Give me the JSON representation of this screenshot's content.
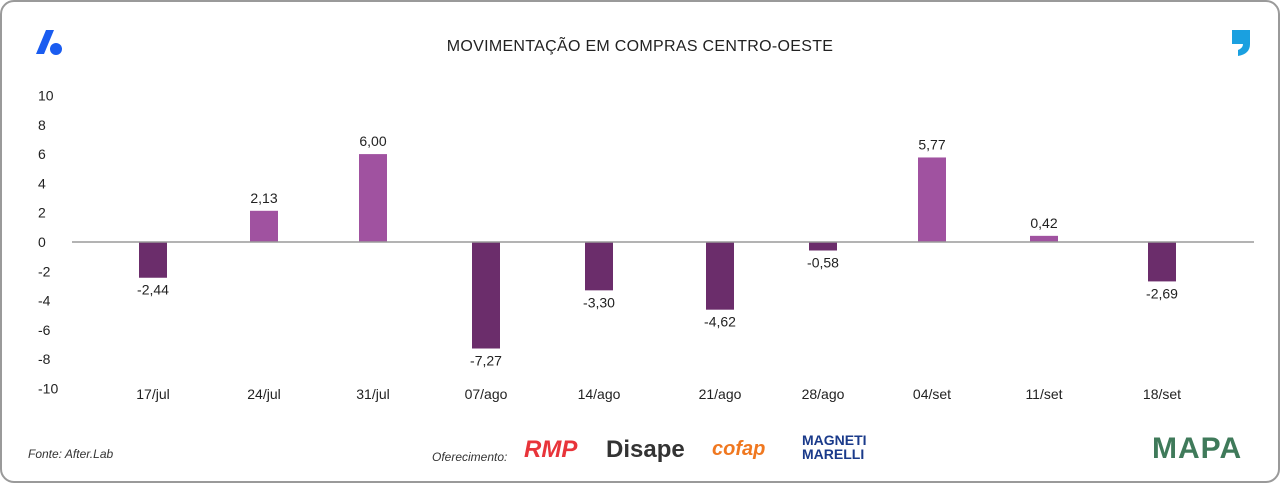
{
  "title": "MOVIMENTAÇÃO EM COMPRAS CENTRO-OESTE",
  "source": "Fonte: After.Lab",
  "sponsor_label": "Oferecimento:",
  "sponsors": [
    "RMP",
    "Disape",
    "cofap",
    "MAGNETI MARELLI"
  ],
  "brand": "MAPA",
  "colors": {
    "positive": "#a052a0",
    "negative": "#6b2d6b",
    "axis": "#9a9a9a"
  },
  "chart_data": {
    "type": "bar",
    "title": "MOVIMENTAÇÃO EM COMPRAS CENTRO-OESTE",
    "categories": [
      "17/jul",
      "24/jul",
      "31/jul",
      "07/ago",
      "14/ago",
      "21/ago",
      "28/ago",
      "04/set",
      "11/set",
      "18/set"
    ],
    "values": [
      -2.44,
      2.13,
      6.0,
      -7.27,
      -3.3,
      -4.62,
      -0.58,
      5.77,
      0.42,
      -2.69
    ],
    "labels": [
      "-2,44",
      "2,13",
      "6,00",
      "-7,27",
      "-3,30",
      "-4,62",
      "-0,58",
      "5,77",
      "0,42",
      "-2,69"
    ],
    "yticks": [
      "10",
      "8",
      "6",
      "4",
      "2",
      "0",
      "-2",
      "-4",
      "-6",
      "-8",
      "-10"
    ],
    "ylim": [
      -10,
      10
    ],
    "grid": false
  }
}
